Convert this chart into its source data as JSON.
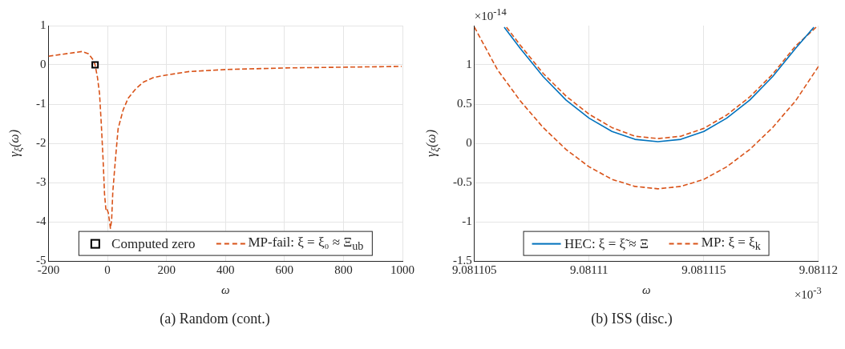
{
  "chart_data": [
    {
      "type": "line",
      "title": "(a) Random (cont.)",
      "xlabel": "ω",
      "ylabel": "γ$_{ξ}$(ω)",
      "xlim": [
        -200,
        1000
      ],
      "ylim": [
        -5,
        1
      ],
      "xticks": [
        -200,
        0,
        200,
        400,
        600,
        800,
        1000
      ],
      "yticks": [
        -5,
        -4,
        -3,
        -2,
        -1,
        0,
        1
      ],
      "grid": true,
      "legend": "bottom",
      "line_style": "dashed",
      "series": [
        {
          "type": "scatter",
          "name": "Computed zero",
          "color": "#000000",
          "marker": "square",
          "x": [
            -42
          ],
          "values": [
            0
          ]
        },
        {
          "name": "MP-fail: ξ = ξ₀ ≈ Ξ$_{ub}$",
          "color": "#d95319",
          "x": [
            -200,
            -86,
            -64,
            -49,
            -42,
            -34,
            -27,
            -21,
            -15,
            -10,
            -5,
            -1,
            3,
            10,
            14,
            18,
            27,
            36,
            53,
            70,
            96,
            122,
            157,
            200,
            278,
            399,
            598,
            797,
            997
          ],
          "values": [
            0.22,
            0.34,
            0.28,
            0.13,
            0,
            -0.32,
            -0.73,
            -1.51,
            -2.4,
            -3.3,
            -3.72,
            -3.69,
            -3.78,
            -4.17,
            -3.96,
            -3.24,
            -2.4,
            -1.63,
            -1.15,
            -0.85,
            -0.61,
            -0.44,
            -0.32,
            -0.26,
            -0.17,
            -0.12,
            -0.08,
            -0.06,
            -0.04
          ]
        }
      ]
    },
    {
      "type": "line",
      "title": "(b) ISS (disc.)",
      "xlabel": "ω",
      "ylabel": "γ$_{ξ}$(ω)",
      "annotations": [
        "×10$^{-14}$",
        "×10$^{-3}$"
      ],
      "xlim": [
        9.081105,
        9.08112
      ],
      "ylim": [
        -1.5,
        1.5
      ],
      "xticks": [
        9.081105,
        9.08111,
        9.081115,
        9.08112
      ],
      "yticks": [
        -1.5,
        -1,
        -0.5,
        0,
        0.5,
        1
      ],
      "grid": true,
      "legend": "bottom",
      "series": [
        {
          "name": "HEC: ξ = ξ̃ ≈ Ξ",
          "color": "#0072bd",
          "line_style": "solid",
          "x": [
            9.0811063,
            9.081107,
            9.081108,
            9.081109,
            9.08111,
            9.081111,
            9.081112,
            9.081113,
            9.081114,
            9.081115,
            9.081116,
            9.081117,
            9.081118,
            9.081119,
            9.0811198
          ],
          "values": [
            1.48,
            1.21,
            0.85,
            0.55,
            0.32,
            0.15,
            0.05,
            0.02,
            0.05,
            0.15,
            0.32,
            0.55,
            0.85,
            1.21,
            1.48
          ]
        },
        {
          "color": "#d95319",
          "line_style": "dashed",
          "x": [
            9.0811064,
            9.081107,
            9.081108,
            9.081109,
            9.08111,
            9.081111,
            9.081112,
            9.081113,
            9.081114,
            9.081115,
            9.081116,
            9.081117,
            9.081118,
            9.081119,
            9.0811199
          ],
          "values": [
            1.48,
            1.25,
            0.89,
            0.6,
            0.37,
            0.2,
            0.09,
            0.06,
            0.09,
            0.19,
            0.36,
            0.59,
            0.88,
            1.24,
            1.48
          ]
        },
        {
          "name": "MP: ξ = ξ$_{k}$",
          "color": "#d95319",
          "line_style": "dashed",
          "x": [
            9.081105,
            9.081106,
            9.081107,
            9.081108,
            9.081109,
            9.08111,
            9.081111,
            9.081112,
            9.081113,
            9.081114,
            9.081115,
            9.081116,
            9.081117,
            9.081118,
            9.081119,
            9.08112
          ],
          "values": [
            1.48,
            0.94,
            0.54,
            0.2,
            -0.08,
            -0.3,
            -0.46,
            -0.55,
            -0.58,
            -0.55,
            -0.46,
            -0.3,
            -0.08,
            0.2,
            0.54,
            0.98
          ]
        }
      ]
    }
  ]
}
